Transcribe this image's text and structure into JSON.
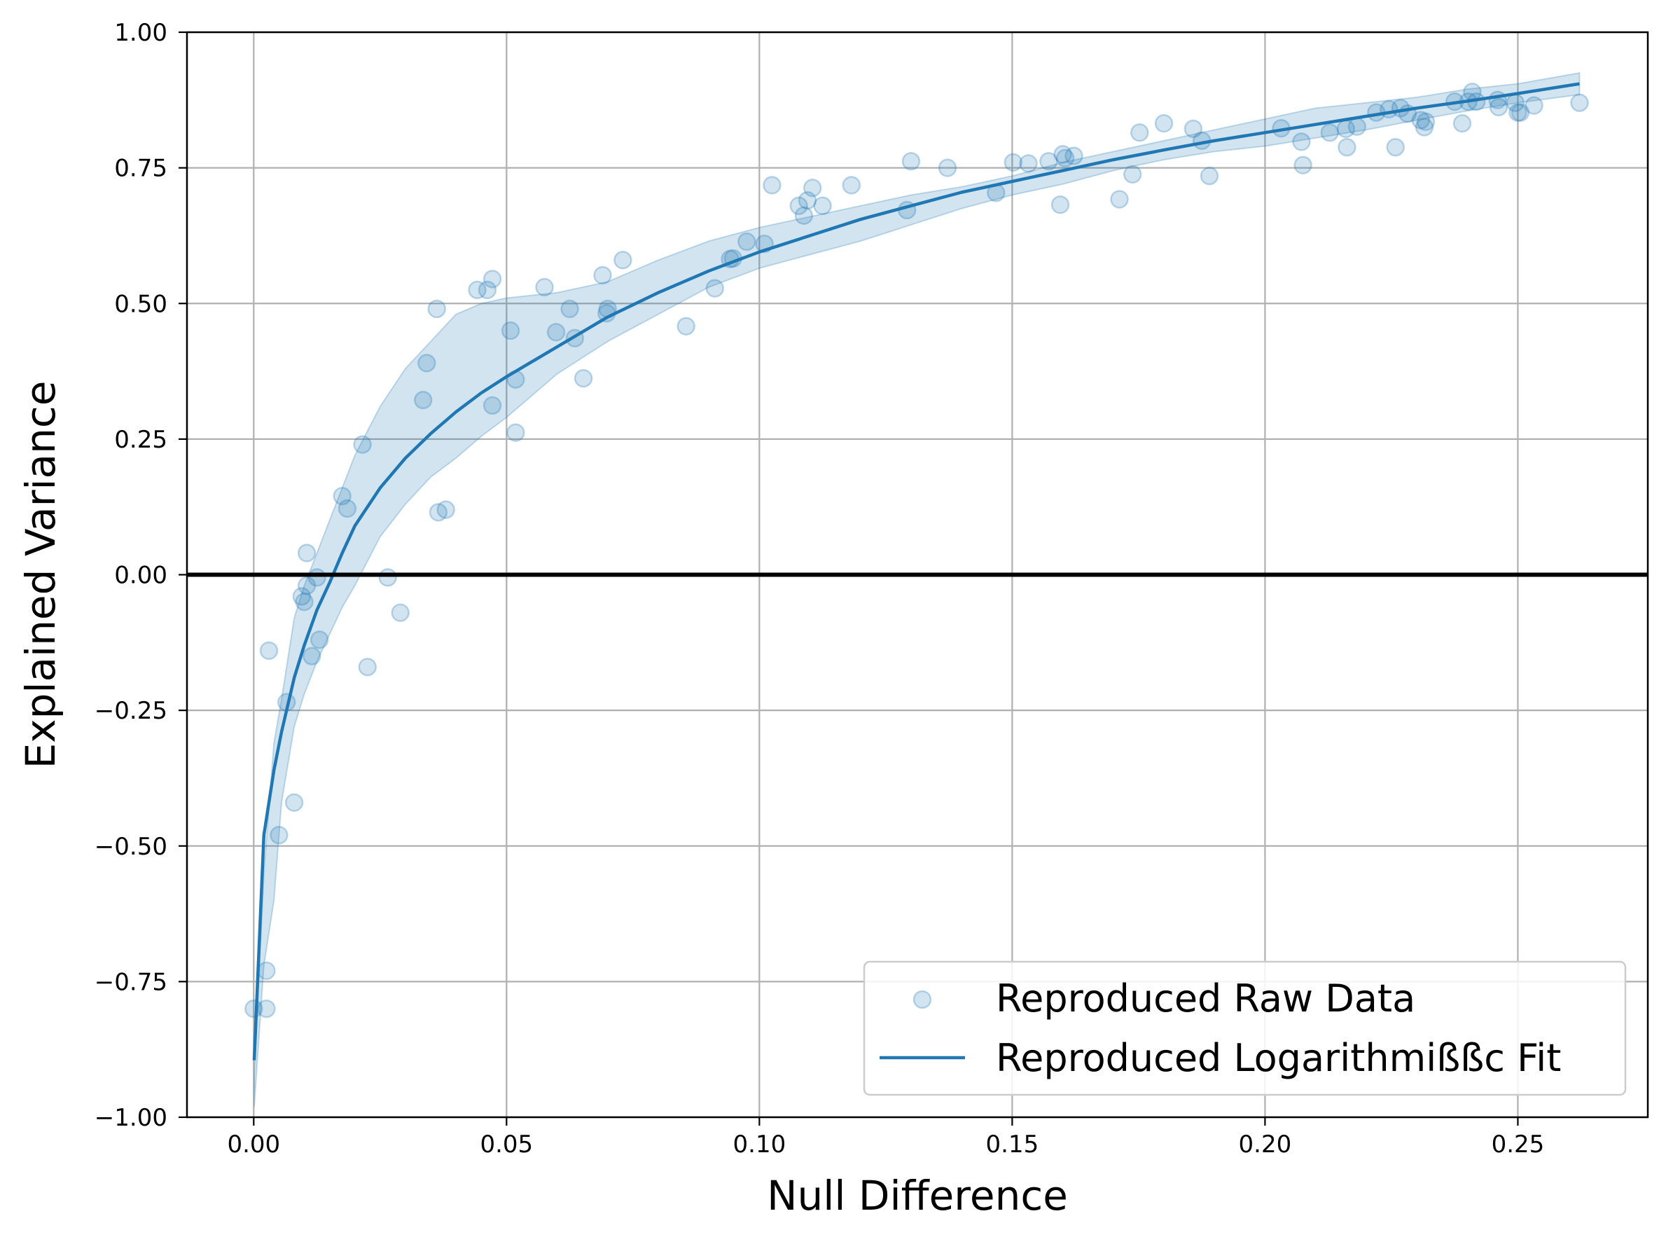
{
  "chart_data": {
    "type": "scatter",
    "title": "",
    "xlabel": "Null Difference",
    "ylabel": "Explained Variance",
    "xlim": [
      -0.0132,
      0.2757
    ],
    "ylim": [
      -1.0,
      1.0
    ],
    "x_ticks": [
      0.0,
      0.05,
      0.1,
      0.15,
      0.2,
      0.25
    ],
    "x_tick_labels": [
      "0.00",
      "0.05",
      "0.10",
      "0.15",
      "0.20",
      "0.25"
    ],
    "y_ticks": [
      -1.0,
      -0.75,
      -0.5,
      -0.25,
      0.0,
      0.25,
      0.5,
      0.75,
      1.0
    ],
    "y_tick_labels": [
      "−1.00",
      "−0.75",
      "−0.50",
      "−0.25",
      "0.00",
      "0.25",
      "0.50",
      "0.75",
      "1.00"
    ],
    "grid": true,
    "reference_line": {
      "y": 0.0,
      "color": "#000000"
    },
    "legend": {
      "position": "lower-right",
      "entries": [
        "Reproduced Raw Data",
        "Reproduced Logarithmißßc Fit"
      ]
    },
    "colors": {
      "series": "#1f77b4",
      "band": "#1f77b4"
    },
    "series": [
      {
        "name": "Reproduced Raw Data",
        "kind": "scatter",
        "points": [
          [
            0.0,
            -0.8
          ],
          [
            0.0025,
            -0.73
          ],
          [
            0.0025,
            -0.8
          ],
          [
            0.003,
            -0.14
          ],
          [
            0.005,
            -0.48
          ],
          [
            0.0065,
            -0.235
          ],
          [
            0.008,
            -0.42
          ],
          [
            0.0095,
            -0.04
          ],
          [
            0.01,
            -0.05
          ],
          [
            0.0105,
            -0.02
          ],
          [
            0.0105,
            0.04
          ],
          [
            0.0115,
            -0.15
          ],
          [
            0.0125,
            -0.005
          ],
          [
            0.013,
            -0.12
          ],
          [
            0.0175,
            0.145
          ],
          [
            0.0185,
            0.122
          ],
          [
            0.0215,
            0.24
          ],
          [
            0.0225,
            -0.17
          ],
          [
            0.0265,
            -0.005
          ],
          [
            0.029,
            -0.07
          ],
          [
            0.0335,
            0.322
          ],
          [
            0.0342,
            0.39
          ],
          [
            0.0362,
            0.49
          ],
          [
            0.0365,
            0.115
          ],
          [
            0.038,
            0.12
          ],
          [
            0.0442,
            0.525
          ],
          [
            0.0462,
            0.525
          ],
          [
            0.0472,
            0.545
          ],
          [
            0.0472,
            0.312
          ],
          [
            0.0508,
            0.45
          ],
          [
            0.0518,
            0.36
          ],
          [
            0.0518,
            0.262
          ],
          [
            0.0575,
            0.53
          ],
          [
            0.0598,
            0.447
          ],
          [
            0.0625,
            0.49
          ],
          [
            0.0635,
            0.436
          ],
          [
            0.0652,
            0.362
          ],
          [
            0.069,
            0.552
          ],
          [
            0.0698,
            0.482
          ],
          [
            0.07,
            0.49
          ],
          [
            0.073,
            0.58
          ],
          [
            0.0855,
            0.458
          ],
          [
            0.0912,
            0.528
          ],
          [
            0.0942,
            0.582
          ],
          [
            0.0948,
            0.583
          ],
          [
            0.0975,
            0.614
          ],
          [
            0.101,
            0.61
          ],
          [
            0.1025,
            0.718
          ],
          [
            0.1078,
            0.68
          ],
          [
            0.1088,
            0.662
          ],
          [
            0.1095,
            0.69
          ],
          [
            0.1105,
            0.713
          ],
          [
            0.1125,
            0.68
          ],
          [
            0.1182,
            0.718
          ],
          [
            0.1292,
            0.672
          ],
          [
            0.13,
            0.762
          ],
          [
            0.1372,
            0.75
          ],
          [
            0.1468,
            0.704
          ],
          [
            0.1502,
            0.76
          ],
          [
            0.1532,
            0.758
          ],
          [
            0.1572,
            0.762
          ],
          [
            0.1595,
            0.682
          ],
          [
            0.16,
            0.775
          ],
          [
            0.1605,
            0.768
          ],
          [
            0.1622,
            0.772
          ],
          [
            0.1712,
            0.692
          ],
          [
            0.1738,
            0.738
          ],
          [
            0.1752,
            0.815
          ],
          [
            0.18,
            0.832
          ],
          [
            0.1858,
            0.822
          ],
          [
            0.1875,
            0.8
          ],
          [
            0.189,
            0.735
          ],
          [
            0.2032,
            0.823
          ],
          [
            0.2072,
            0.798
          ],
          [
            0.2075,
            0.755
          ],
          [
            0.2128,
            0.815
          ],
          [
            0.216,
            0.822
          ],
          [
            0.2162,
            0.788
          ],
          [
            0.2182,
            0.826
          ],
          [
            0.222,
            0.852
          ],
          [
            0.2245,
            0.858
          ],
          [
            0.2258,
            0.788
          ],
          [
            0.2268,
            0.86
          ],
          [
            0.2282,
            0.85
          ],
          [
            0.2308,
            0.838
          ],
          [
            0.2315,
            0.825
          ],
          [
            0.2318,
            0.835
          ],
          [
            0.2375,
            0.872
          ],
          [
            0.239,
            0.832
          ],
          [
            0.2402,
            0.872
          ],
          [
            0.241,
            0.89
          ],
          [
            0.2418,
            0.872
          ],
          [
            0.246,
            0.875
          ],
          [
            0.2462,
            0.862
          ],
          [
            0.2495,
            0.87
          ],
          [
            0.25,
            0.852
          ],
          [
            0.2505,
            0.852
          ],
          [
            0.2532,
            0.865
          ],
          [
            0.2622,
            0.87
          ]
        ]
      },
      {
        "name": "Reproduced Logarithmißßc Fit",
        "kind": "line",
        "points": [
          [
            0.0001,
            -0.895
          ],
          [
            0.002,
            -0.48
          ],
          [
            0.004,
            -0.36
          ],
          [
            0.0055,
            -0.29
          ],
          [
            0.008,
            -0.19
          ],
          [
            0.01,
            -0.13
          ],
          [
            0.0125,
            -0.065
          ],
          [
            0.015,
            -0.015
          ],
          [
            0.0175,
            0.04
          ],
          [
            0.02,
            0.09
          ],
          [
            0.025,
            0.16
          ],
          [
            0.03,
            0.215
          ],
          [
            0.035,
            0.26
          ],
          [
            0.04,
            0.3
          ],
          [
            0.045,
            0.335
          ],
          [
            0.05,
            0.365
          ],
          [
            0.06,
            0.42
          ],
          [
            0.07,
            0.475
          ],
          [
            0.08,
            0.52
          ],
          [
            0.09,
            0.56
          ],
          [
            0.1,
            0.595
          ],
          [
            0.11,
            0.625
          ],
          [
            0.12,
            0.655
          ],
          [
            0.13,
            0.68
          ],
          [
            0.14,
            0.705
          ],
          [
            0.15,
            0.725
          ],
          [
            0.16,
            0.745
          ],
          [
            0.17,
            0.765
          ],
          [
            0.18,
            0.783
          ],
          [
            0.19,
            0.8
          ],
          [
            0.2,
            0.815
          ],
          [
            0.21,
            0.83
          ],
          [
            0.22,
            0.845
          ],
          [
            0.23,
            0.86
          ],
          [
            0.24,
            0.873
          ],
          [
            0.25,
            0.887
          ],
          [
            0.2622,
            0.905
          ]
        ]
      }
    ],
    "confidence_band": {
      "x": [
        0.0001,
        0.002,
        0.004,
        0.0055,
        0.008,
        0.01,
        0.0125,
        0.015,
        0.0175,
        0.02,
        0.025,
        0.03,
        0.035,
        0.04,
        0.045,
        0.05,
        0.06,
        0.07,
        0.08,
        0.09,
        0.1,
        0.11,
        0.12,
        0.13,
        0.14,
        0.15,
        0.16,
        0.17,
        0.18,
        0.19,
        0.2,
        0.21,
        0.22,
        0.23,
        0.24,
        0.25,
        0.2622
      ],
      "upper": [
        -0.92,
        -0.55,
        -0.31,
        -0.23,
        -0.08,
        -0.02,
        0.04,
        0.1,
        0.16,
        0.22,
        0.31,
        0.38,
        0.43,
        0.48,
        0.5,
        0.51,
        0.52,
        0.54,
        0.58,
        0.615,
        0.64,
        0.66,
        0.68,
        0.7,
        0.715,
        0.735,
        0.76,
        0.78,
        0.8,
        0.82,
        0.84,
        0.86,
        0.87,
        0.88,
        0.895,
        0.905,
        0.925
      ],
      "lower": [
        -0.98,
        -0.72,
        -0.6,
        -0.42,
        -0.28,
        -0.22,
        -0.16,
        -0.11,
        -0.06,
        -0.02,
        0.07,
        0.13,
        0.18,
        0.215,
        0.255,
        0.29,
        0.37,
        0.43,
        0.48,
        0.53,
        0.565,
        0.59,
        0.615,
        0.645,
        0.675,
        0.7,
        0.72,
        0.745,
        0.765,
        0.78,
        0.79,
        0.805,
        0.82,
        0.838,
        0.855,
        0.87,
        0.885
      ]
    }
  }
}
